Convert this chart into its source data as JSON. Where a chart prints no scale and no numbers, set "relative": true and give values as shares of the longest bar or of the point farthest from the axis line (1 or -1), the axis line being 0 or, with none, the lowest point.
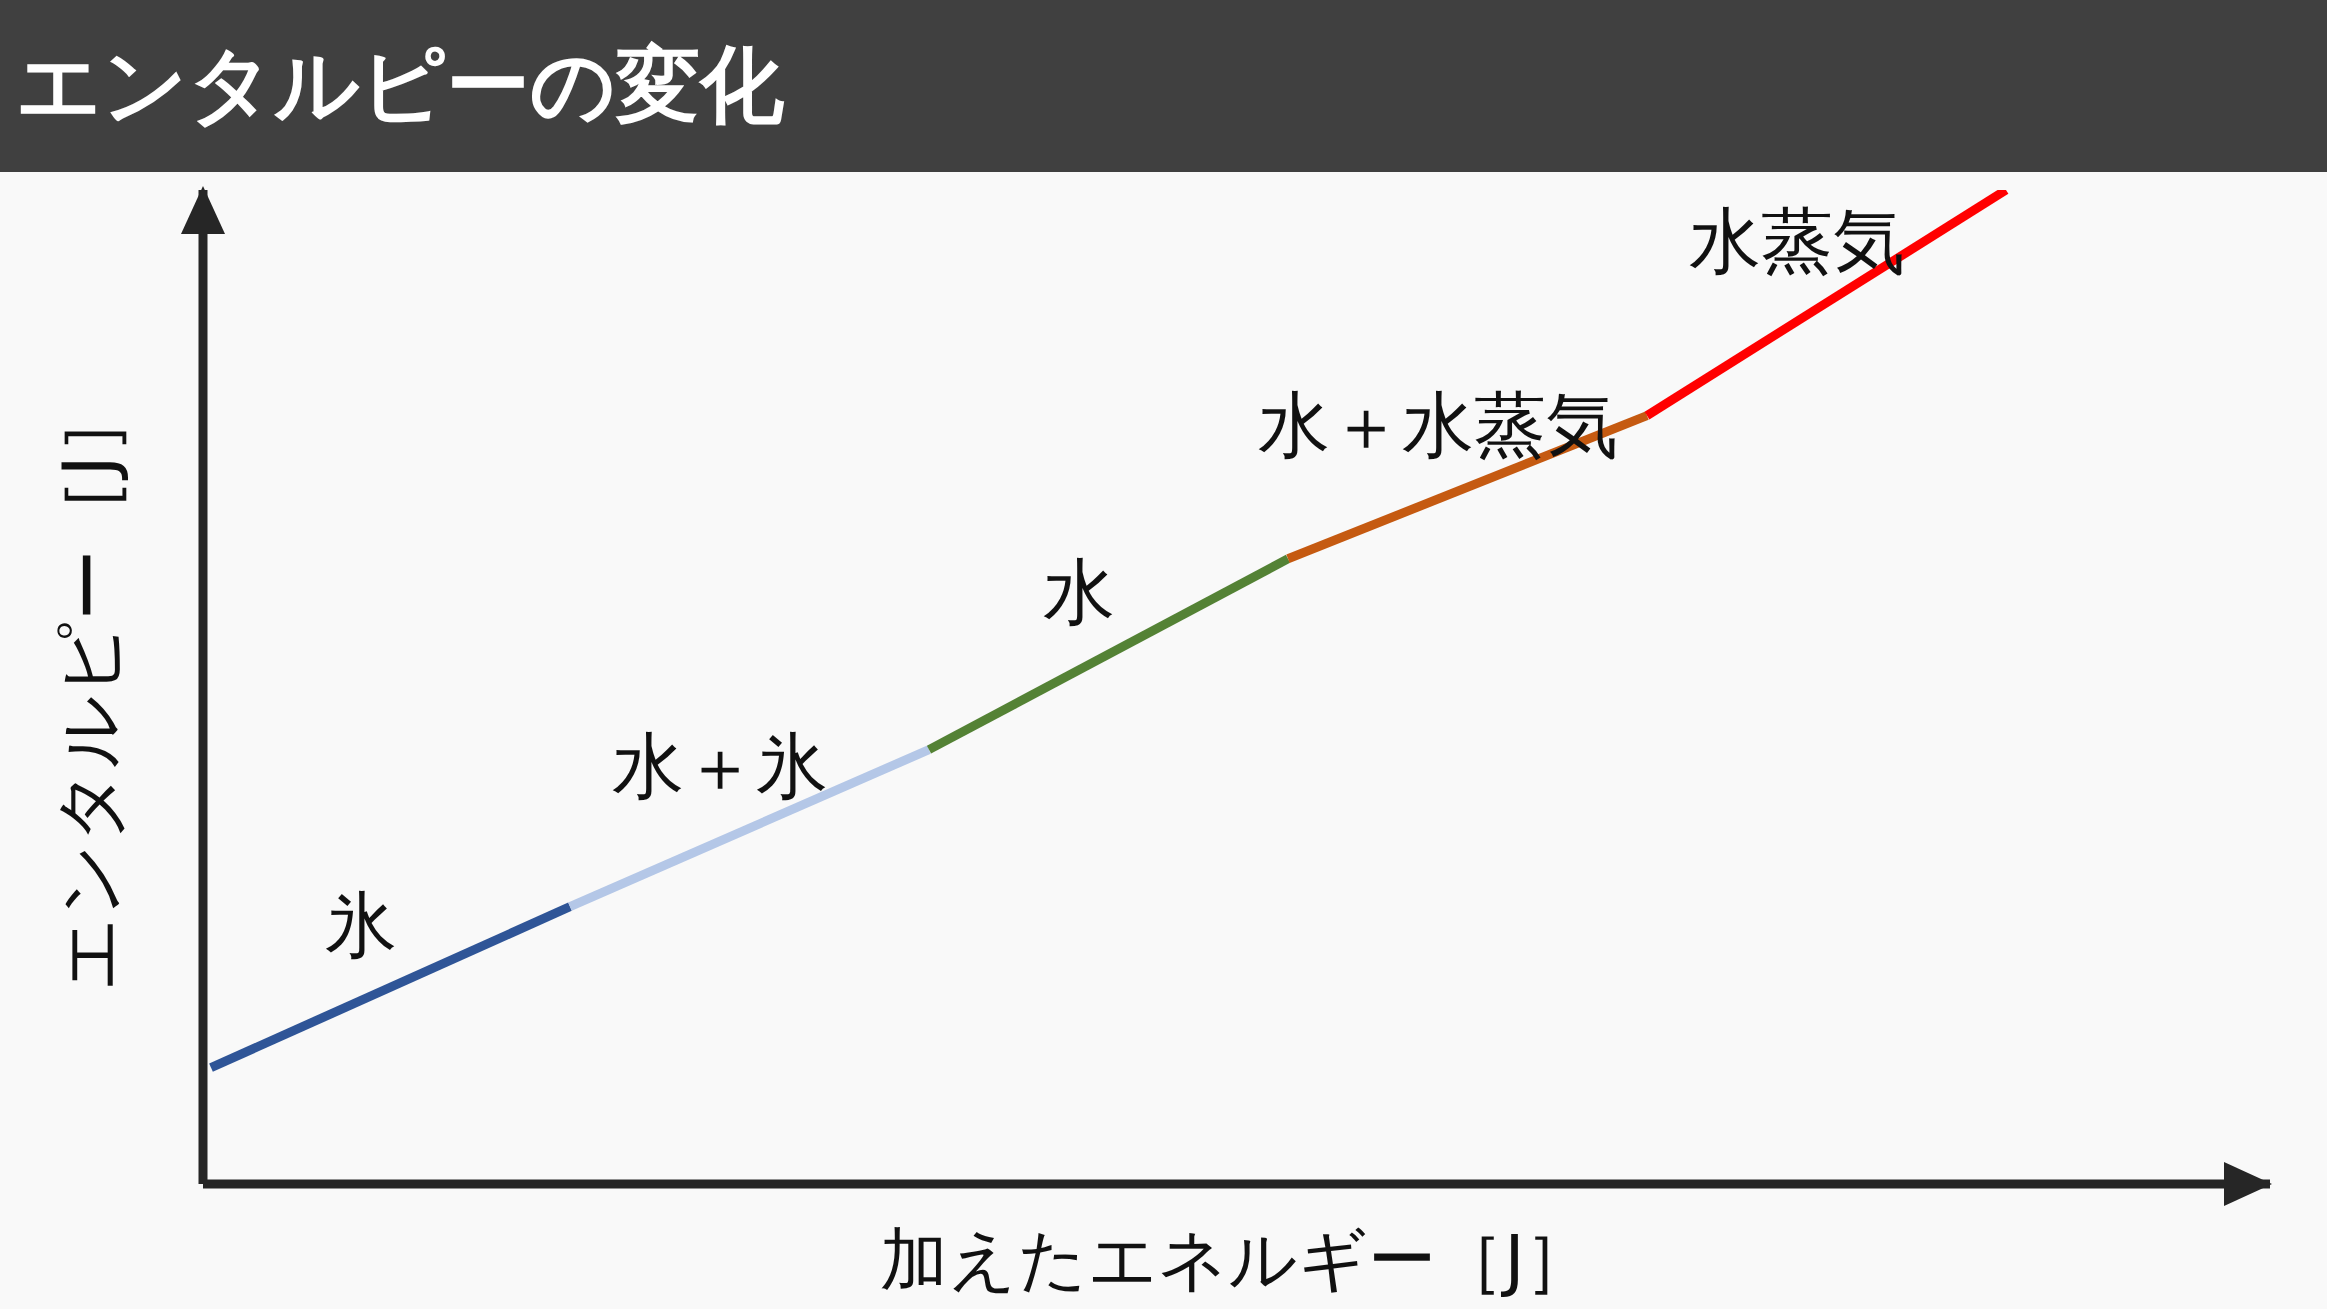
{
  "chart_data": {
    "type": "line",
    "title": "エンタルピーの変化",
    "xlabel": "加えたエネルギー［J］",
    "ylabel": "エンタルピー［J］",
    "relative": true,
    "categories": [
      null,
      null,
      null,
      null,
      null,
      null
    ],
    "series": [
      {
        "name": "氷",
        "color": "#2f5597",
        "values": [
          0.117,
          0.279,
          null,
          null,
          null,
          null
        ]
      },
      {
        "name": "水＋氷",
        "color": "#b4c7e7",
        "values": [
          null,
          0.279,
          0.437,
          null,
          null,
          null
        ]
      },
      {
        "name": "水",
        "color": "#548235",
        "values": [
          null,
          null,
          0.437,
          0.629,
          null,
          null
        ]
      },
      {
        "name": "水＋水蒸気",
        "color": "#c55a11",
        "values": [
          null,
          null,
          null,
          0.629,
          0.773,
          null
        ]
      },
      {
        "name": "水蒸気",
        "color": "#ff0000",
        "values": [
          null,
          null,
          null,
          null,
          0.773,
          1
        ]
      }
    ]
  }
}
